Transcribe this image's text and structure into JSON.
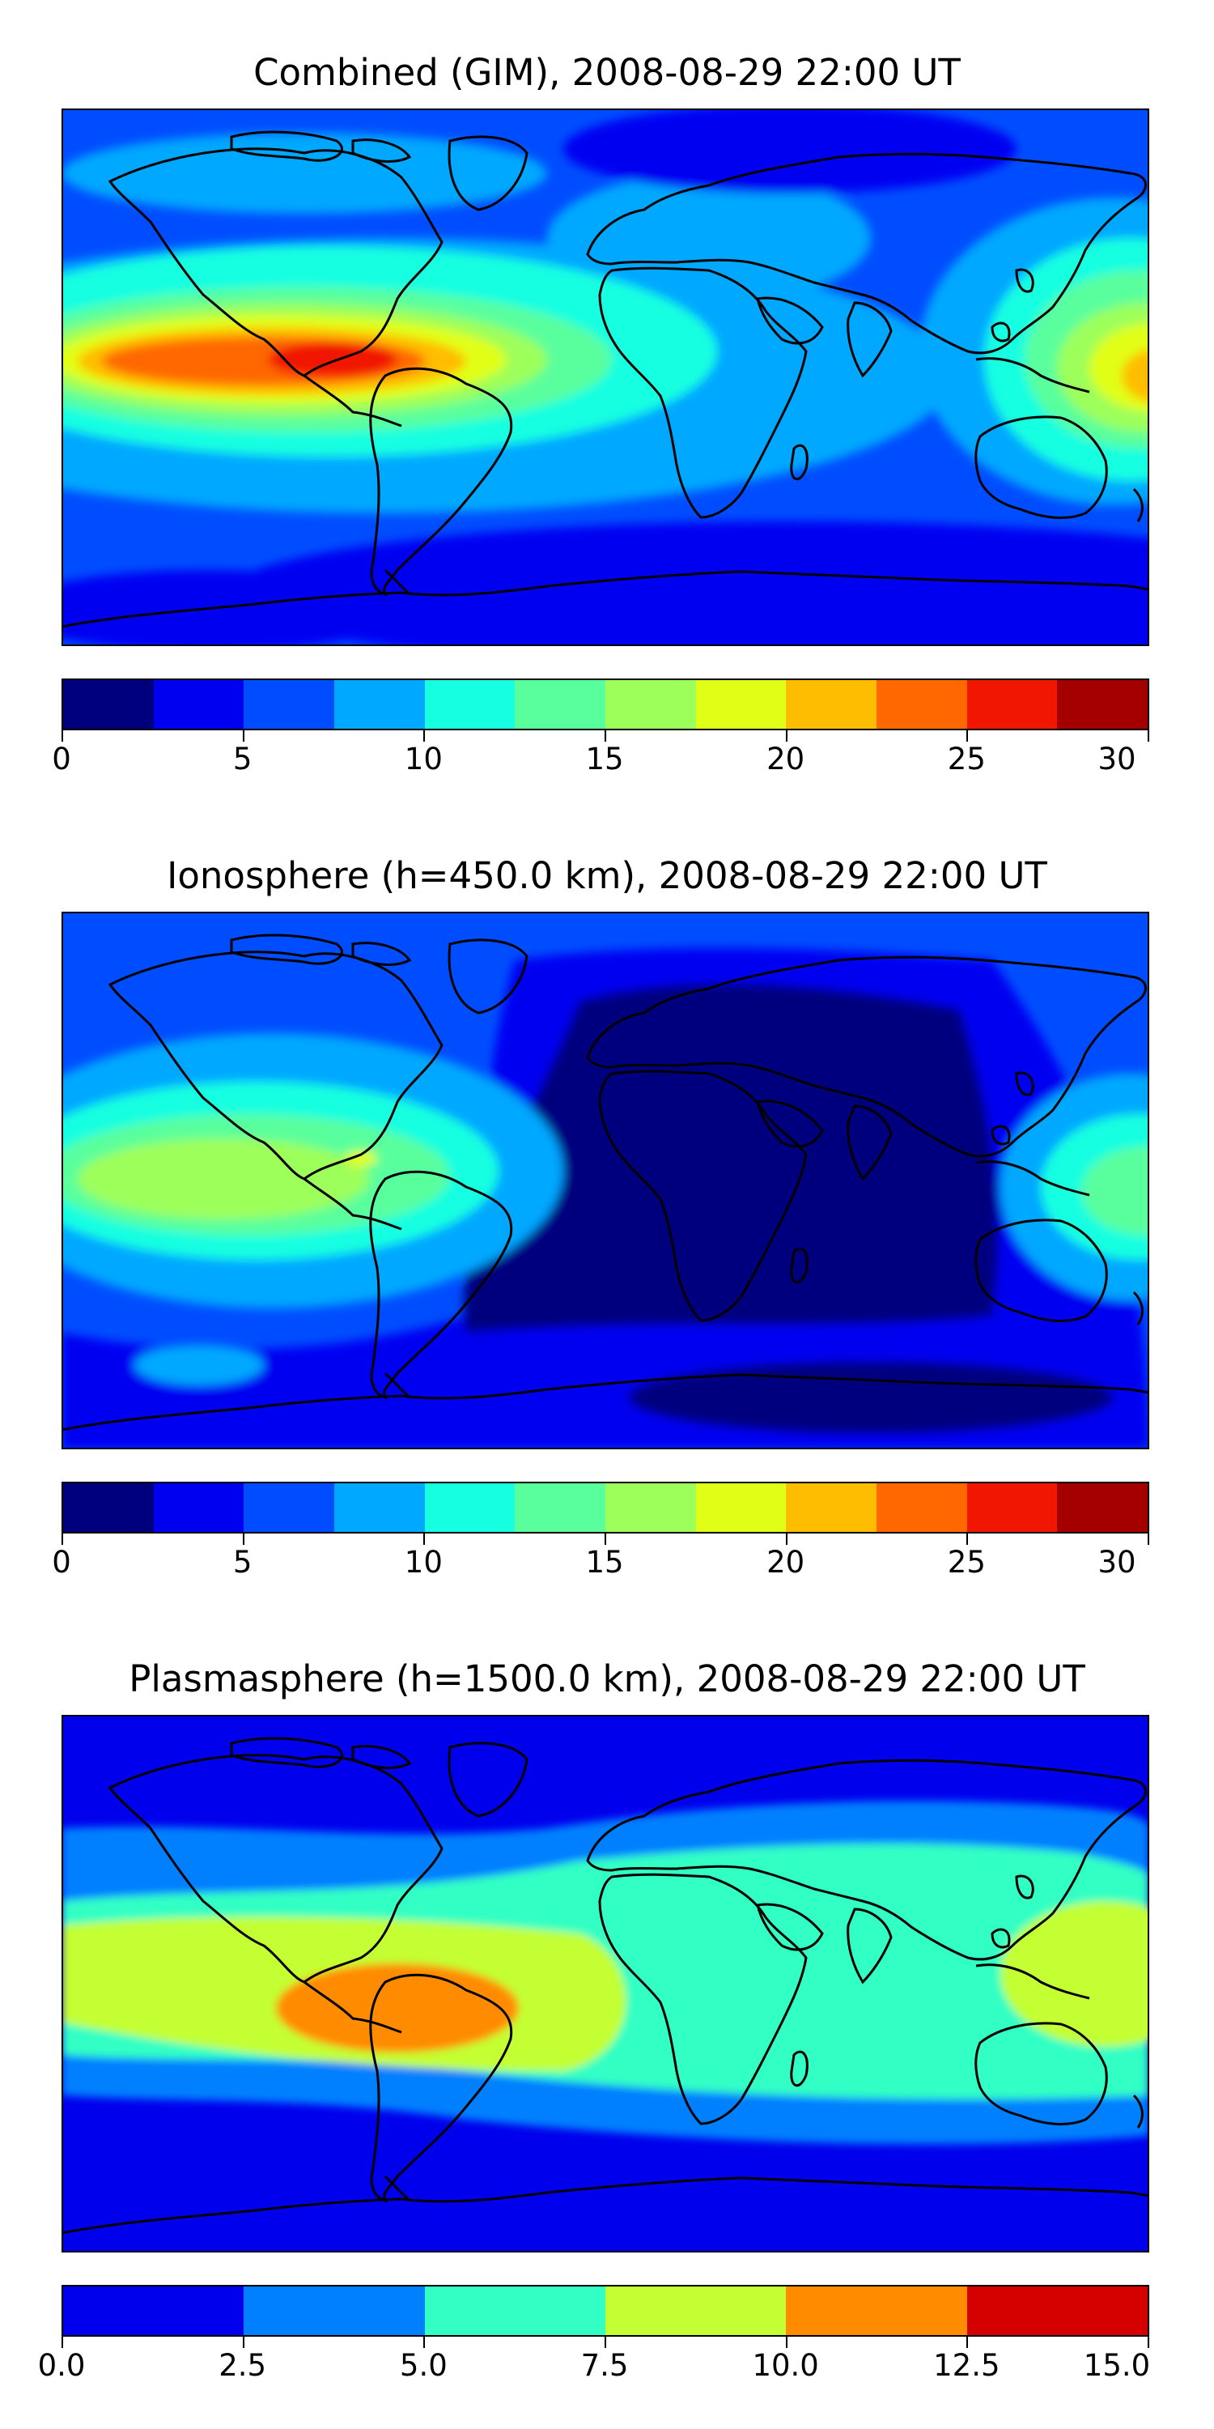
{
  "panels": [
    {
      "title": "Combined (GIM), 2008-08-29 22:00 UT",
      "colors": [
        "#00007f",
        "#0000f1",
        "#004dff",
        "#00a8ff",
        "#16ffe1",
        "#5aff9d",
        "#9dff5a",
        "#e1ff16",
        "#ffbd00",
        "#ff6800",
        "#f11600",
        "#a50000"
      ],
      "ticks": [
        "0",
        "5",
        "10",
        "15",
        "20",
        "25",
        "30"
      ]
    },
    {
      "title": "Ionosphere  (h=450.0 km), 2008-08-29 22:00 UT",
      "colors": [
        "#00007f",
        "#0000f1",
        "#004dff",
        "#00a8ff",
        "#16ffe1",
        "#5aff9d",
        "#9dff5a",
        "#e1ff16",
        "#ffbd00",
        "#ff6800",
        "#f11600",
        "#a50000"
      ],
      "ticks": [
        "0",
        "5",
        "10",
        "15",
        "20",
        "25",
        "30"
      ]
    },
    {
      "title": "Plasmasphere (h=1500.0 km), 2008-08-29 22:00 UT",
      "colors": [
        "#0000ec",
        "#0080ff",
        "#33ffc4",
        "#c3ff33",
        "#ff8c00",
        "#d50000"
      ],
      "ticks": [
        "0.0",
        "2.5",
        "5.0",
        "7.5",
        "10.0",
        "12.5",
        "15.0"
      ]
    }
  ]
}
